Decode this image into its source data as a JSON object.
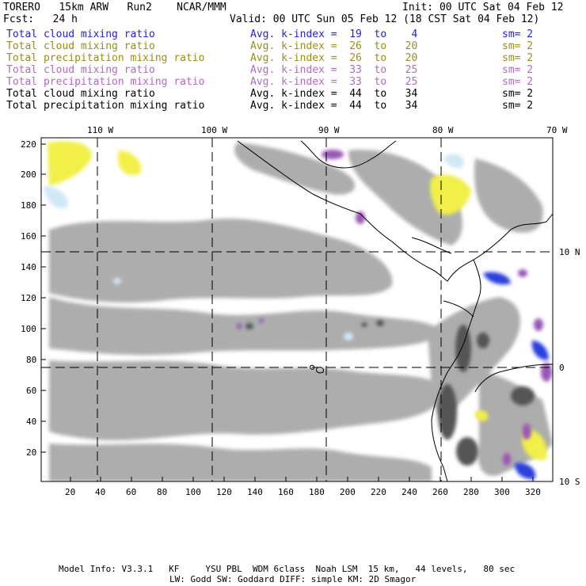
{
  "header": {
    "model": "TORERO   15km ARW   Run2    NCAR/MMM",
    "init": "Init: 00 UTC Sat 04 Feb 12",
    "fcst": "Fcst:   24 h",
    "valid": "Valid: 00 UTC Sun 05 Feb 12 (18 CST Sat 04 Feb 12)"
  },
  "legend": [
    {
      "field": "Total cloud mixing ratio",
      "index": "Avg. k-index =  19  to    4",
      "sm": "sm= 2",
      "color": "#2323d2"
    },
    {
      "field": "Total cloud mixing ratio",
      "index": "Avg. k-index =  26  to   20",
      "sm": "sm= 2",
      "color": "#9b8d1c"
    },
    {
      "field": "Total precipitation mixing ratio",
      "index": "Avg. k-index =  26  to   20",
      "sm": "sm= 2",
      "color": "#9b8d1c"
    },
    {
      "field": "Total cloud mixing ratio",
      "index": "Avg. k-index =  33  to   25",
      "sm": "sm= 2",
      "color": "#b06ac0"
    },
    {
      "field": "Total precipitation mixing ratio",
      "index": "Avg. k-index =  33  to   25",
      "sm": "sm= 2",
      "color": "#b06ac0"
    },
    {
      "field": "Total cloud mixing ratio",
      "index": "Avg. k-index =  44  to   34",
      "sm": "sm= 2",
      "color": "#000000"
    },
    {
      "field": "Total precipitation mixing ratio",
      "index": "Avg. k-index =  44  to   34",
      "sm": "sm= 2",
      "color": "#000000"
    }
  ],
  "map": {
    "lon_labels": [
      "110 W",
      "100 W",
      "90 W",
      "80 W",
      "70 W"
    ],
    "lat_labels": [
      "10 N",
      "0",
      "10 S"
    ],
    "y_ticks": [
      "220",
      "200",
      "180",
      "160",
      "140",
      "120",
      "100",
      "80",
      "60",
      "40",
      "20"
    ],
    "x_ticks": [
      "20",
      "40",
      "60",
      "80",
      "100",
      "120",
      "140",
      "160",
      "180",
      "200",
      "220",
      "240",
      "260",
      "280",
      "300",
      "320"
    ]
  },
  "footer": {
    "line1": "Model Info: V3.3.1   KF     YSU PBL  WDM 6class  Noah LSM  15 km,   44 levels,   80 sec",
    "line2": "LW: Godd SW: Goddard DIFF: simple KM: 2D Smagor"
  },
  "colors": {
    "cloud_gray": "#a9a9a9",
    "dark_gray": "#555555",
    "yellow": "#f2ef4a",
    "light_blue": "#cfe8f6",
    "blue": "#2b3fdc",
    "purple": "#9a56b5"
  }
}
